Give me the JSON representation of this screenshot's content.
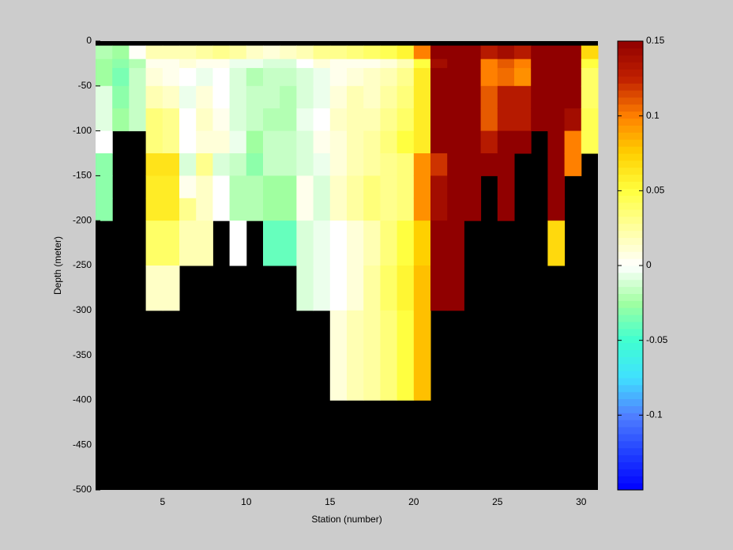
{
  "chart_data": {
    "type": "heatmap",
    "xlabel": "Station (number)",
    "ylabel": "Depth (meter)",
    "x_edges": [
      1,
      2,
      3,
      4,
      5,
      6,
      7,
      8,
      9,
      10,
      11,
      12,
      13,
      14,
      15,
      16,
      17,
      18,
      19,
      20,
      21,
      22,
      23,
      24,
      25,
      26,
      27,
      28,
      29,
      30,
      31
    ],
    "y_edges": [
      -5,
      -20,
      -30,
      -50,
      -75,
      -100,
      -125,
      -150,
      -175,
      -200,
      -250,
      -300,
      -400,
      -500
    ],
    "values": [
      [
        -0.02,
        -0.025,
        -0.025,
        -0.008,
        -0.008,
        0,
        -0.03,
        -0.03,
        -0.03,
        null,
        null,
        null,
        null
      ],
      [
        -0.025,
        -0.03,
        -0.035,
        -0.03,
        -0.025,
        null,
        null,
        null,
        null,
        null,
        null,
        null,
        null
      ],
      [
        0.002,
        -0.02,
        -0.015,
        -0.015,
        -0.015,
        null,
        null,
        null,
        null,
        null,
        null,
        null,
        null
      ],
      [
        0.02,
        0.005,
        0.01,
        0.02,
        0.035,
        0.035,
        0.065,
        0.06,
        0.06,
        0.04,
        0.015,
        null,
        null
      ],
      [
        0.02,
        0.005,
        0.005,
        0.015,
        0.03,
        0.03,
        0.065,
        0.06,
        0.06,
        0.04,
        0.015,
        null,
        null
      ],
      [
        0.02,
        0.01,
        0,
        -0.005,
        0,
        0,
        -0.01,
        0.005,
        0.03,
        0.02,
        null,
        null,
        null
      ],
      [
        0.025,
        0.005,
        -0.005,
        0.01,
        0.015,
        0.01,
        0.03,
        0.015,
        0.015,
        0.02,
        null,
        null,
        null
      ],
      [
        0.03,
        0.005,
        0,
        0,
        0.005,
        0.01,
        -0.01,
        0,
        0,
        null,
        null,
        null,
        null
      ],
      [
        0.025,
        -0.005,
        -0.01,
        -0.01,
        -0.01,
        -0.005,
        -0.015,
        -0.02,
        -0.02,
        0,
        null,
        null,
        null
      ],
      [
        0.015,
        -0.005,
        -0.02,
        -0.015,
        -0.015,
        -0.025,
        -0.03,
        -0.02,
        -0.02,
        null,
        null,
        null,
        null
      ],
      [
        0.01,
        -0.01,
        -0.015,
        -0.015,
        -0.02,
        -0.015,
        -0.015,
        -0.025,
        -0.025,
        -0.04,
        null,
        null,
        null
      ],
      [
        0.015,
        -0.01,
        -0.015,
        -0.02,
        -0.02,
        -0.015,
        -0.015,
        -0.025,
        -0.025,
        -0.04,
        null,
        null,
        null
      ],
      [
        0.02,
        0,
        -0.01,
        -0.01,
        -0.005,
        -0.01,
        -0.01,
        0.005,
        0.005,
        -0.01,
        -0.01,
        null,
        null
      ],
      [
        0.03,
        0.01,
        -0.005,
        -0.005,
        0,
        0.005,
        -0.005,
        -0.01,
        -0.01,
        -0.005,
        -0.005,
        null,
        null
      ],
      [
        0.03,
        0.005,
        0.005,
        0.01,
        0.015,
        0.01,
        0.01,
        0.015,
        0.015,
        0,
        0,
        0.01,
        null
      ],
      [
        0.035,
        0.005,
        0.01,
        0.02,
        0.02,
        0.02,
        0.02,
        0.025,
        0.025,
        0.01,
        0.01,
        0.02,
        null
      ],
      [
        0.04,
        0.005,
        0.015,
        0.015,
        0.02,
        0.025,
        0.025,
        0.035,
        0.035,
        0.02,
        0.025,
        0.025,
        null
      ],
      [
        0.045,
        0.01,
        0.02,
        0.025,
        0.03,
        0.035,
        0.03,
        0.03,
        0.03,
        0.035,
        0.04,
        0.035,
        null
      ],
      [
        0.055,
        0.02,
        0.03,
        0.035,
        0.04,
        0.05,
        0.035,
        0.035,
        0.035,
        0.05,
        0.055,
        0.05,
        null
      ],
      [
        0.1,
        0.05,
        0.06,
        0.06,
        0.06,
        0.06,
        0.095,
        0.095,
        0.095,
        0.075,
        0.08,
        0.08,
        null
      ],
      [
        0.15,
        0.14,
        0.15,
        0.15,
        0.15,
        0.15,
        0.12,
        0.14,
        0.14,
        0.15,
        0.15,
        null,
        null
      ],
      [
        0.15,
        0.15,
        0.15,
        0.15,
        0.15,
        0.15,
        0.15,
        0.15,
        0.15,
        0.15,
        0.15,
        null,
        null
      ],
      [
        0.15,
        0.15,
        0.15,
        0.15,
        0.15,
        0.15,
        0.15,
        0.15,
        0.15,
        null,
        null,
        null,
        null
      ],
      [
        0.13,
        0.1,
        0.1,
        0.11,
        0.11,
        0.13,
        0.15,
        null,
        null,
        null,
        null,
        null,
        null
      ],
      [
        0.14,
        0.11,
        0.105,
        0.13,
        0.13,
        0.15,
        0.15,
        0.15,
        0.15,
        null,
        null,
        null,
        null
      ],
      [
        0.13,
        0.1,
        0.095,
        0.13,
        0.13,
        0.15,
        null,
        null,
        null,
        null,
        null,
        null,
        null
      ],
      [
        0.15,
        0.15,
        0.15,
        0.15,
        0.15,
        null,
        null,
        null,
        null,
        null,
        null,
        null,
        null
      ],
      [
        0.15,
        0.15,
        0.15,
        0.15,
        0.15,
        0.15,
        0.15,
        0.15,
        0.15,
        0.07,
        null,
        null,
        null
      ],
      [
        0.15,
        0.15,
        0.15,
        0.15,
        0.14,
        0.1,
        0.1,
        null,
        null,
        null,
        null,
        null,
        null
      ],
      [
        0.07,
        0.05,
        0.04,
        0.04,
        0.045,
        0.045,
        null,
        null,
        null,
        null,
        null,
        null,
        null
      ]
    ],
    "xlim": [
      1,
      31
    ],
    "xticks": [
      5,
      10,
      15,
      20,
      25,
      30
    ],
    "ylim": [
      -500,
      0
    ],
    "yticks": [
      0,
      -50,
      -100,
      -150,
      -200,
      -250,
      -300,
      -350,
      -400,
      -450,
      -500
    ],
    "clim": [
      -0.15,
      0.15
    ],
    "cticks": [
      0.15,
      0.1,
      0.05,
      0,
      -0.05,
      -0.1
    ],
    "colormap": [
      "#0000ff",
      "#2040ff",
      "#5080ff",
      "#40e0ff",
      "#40ffd0",
      "#a0ffa0",
      "#ffffff",
      "#ffffa0",
      "#ffff40",
      "#ffd000",
      "#ff8000",
      "#c02000",
      "#900000"
    ],
    "nan_color": "#000000",
    "grid": false
  }
}
